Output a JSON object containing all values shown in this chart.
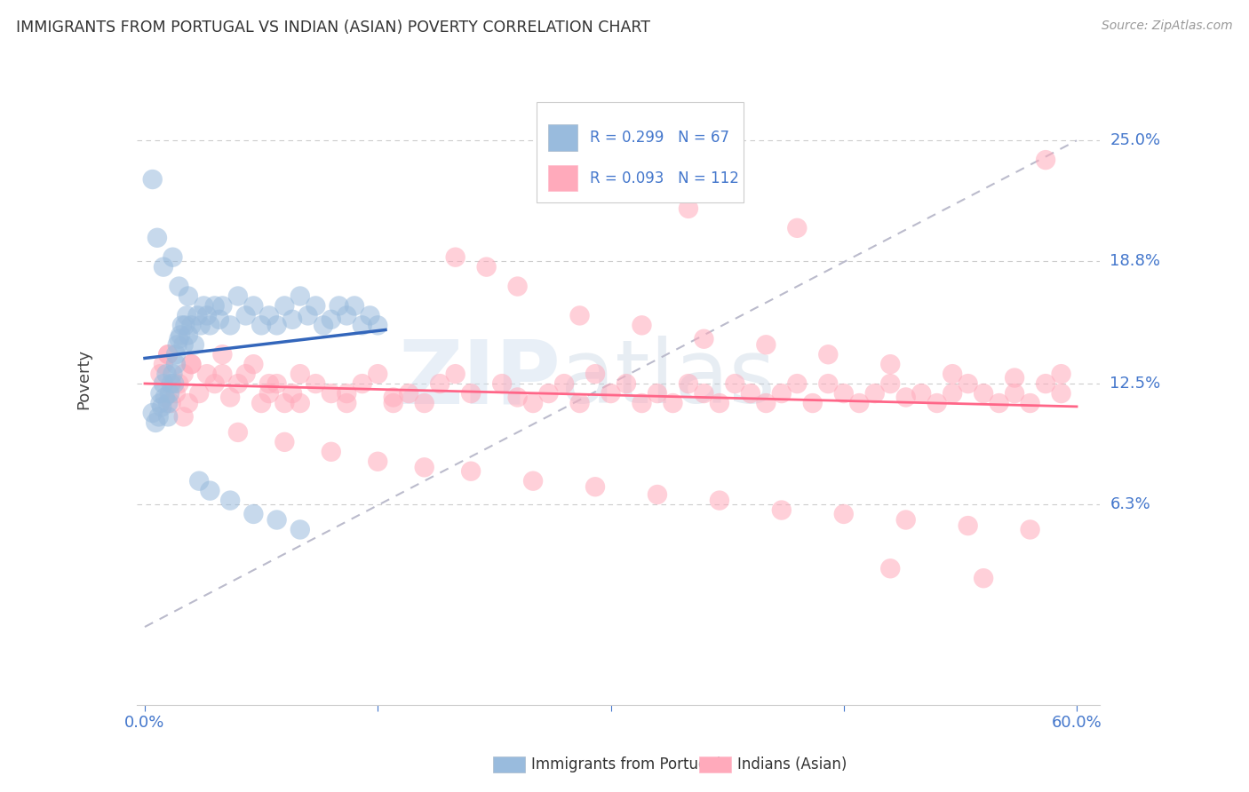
{
  "title": "IMMIGRANTS FROM PORTUGAL VS INDIAN (ASIAN) POVERTY CORRELATION CHART",
  "source": "Source: ZipAtlas.com",
  "ylabel": "Poverty",
  "ytick_labels": [
    "25.0%",
    "18.8%",
    "12.5%",
    "6.3%"
  ],
  "ytick_values": [
    0.25,
    0.188,
    0.125,
    0.063
  ],
  "xlim": [
    -0.005,
    0.615
  ],
  "ylim": [
    -0.04,
    0.295
  ],
  "color_blue": "#99BBDD",
  "color_pink": "#FFAABB",
  "color_line_blue": "#3366BB",
  "color_line_pink": "#FF6688",
  "color_dashed": "#BBBBCC",
  "color_axis_labels": "#4477CC",
  "color_title": "#333333",
  "legend_label1": "Immigrants from Portugal",
  "legend_label2": "Indians (Asian)",
  "port_x": [
    0.005,
    0.007,
    0.009,
    0.01,
    0.01,
    0.011,
    0.012,
    0.013,
    0.014,
    0.015,
    0.015,
    0.016,
    0.017,
    0.018,
    0.019,
    0.02,
    0.02,
    0.021,
    0.022,
    0.023,
    0.024,
    0.025,
    0.026,
    0.027,
    0.028,
    0.03,
    0.032,
    0.034,
    0.036,
    0.038,
    0.04,
    0.042,
    0.045,
    0.048,
    0.05,
    0.055,
    0.06,
    0.065,
    0.07,
    0.075,
    0.08,
    0.085,
    0.09,
    0.095,
    0.1,
    0.105,
    0.11,
    0.115,
    0.12,
    0.125,
    0.13,
    0.135,
    0.14,
    0.145,
    0.15,
    0.005,
    0.008,
    0.012,
    0.018,
    0.022,
    0.028,
    0.035,
    0.042,
    0.055,
    0.07,
    0.085,
    0.1
  ],
  "port_y": [
    0.11,
    0.105,
    0.108,
    0.115,
    0.12,
    0.113,
    0.125,
    0.118,
    0.13,
    0.108,
    0.115,
    0.12,
    0.125,
    0.13,
    0.125,
    0.135,
    0.14,
    0.145,
    0.148,
    0.15,
    0.155,
    0.145,
    0.155,
    0.16,
    0.15,
    0.155,
    0.145,
    0.16,
    0.155,
    0.165,
    0.16,
    0.155,
    0.165,
    0.158,
    0.165,
    0.155,
    0.17,
    0.16,
    0.165,
    0.155,
    0.16,
    0.155,
    0.165,
    0.158,
    0.17,
    0.16,
    0.165,
    0.155,
    0.158,
    0.165,
    0.16,
    0.165,
    0.155,
    0.16,
    0.155,
    0.23,
    0.2,
    0.185,
    0.19,
    0.175,
    0.17,
    0.075,
    0.07,
    0.065,
    0.058,
    0.055,
    0.05
  ],
  "ind_x": [
    0.01,
    0.012,
    0.015,
    0.017,
    0.02,
    0.022,
    0.025,
    0.028,
    0.03,
    0.035,
    0.04,
    0.045,
    0.05,
    0.055,
    0.06,
    0.065,
    0.07,
    0.075,
    0.08,
    0.085,
    0.09,
    0.095,
    0.1,
    0.11,
    0.12,
    0.13,
    0.14,
    0.15,
    0.16,
    0.17,
    0.18,
    0.19,
    0.2,
    0.21,
    0.22,
    0.23,
    0.24,
    0.25,
    0.26,
    0.27,
    0.28,
    0.29,
    0.3,
    0.31,
    0.32,
    0.33,
    0.34,
    0.35,
    0.36,
    0.37,
    0.38,
    0.39,
    0.4,
    0.41,
    0.42,
    0.43,
    0.44,
    0.45,
    0.46,
    0.47,
    0.48,
    0.49,
    0.5,
    0.51,
    0.52,
    0.53,
    0.54,
    0.55,
    0.56,
    0.57,
    0.58,
    0.59,
    0.015,
    0.03,
    0.05,
    0.08,
    0.1,
    0.13,
    0.16,
    0.2,
    0.24,
    0.28,
    0.32,
    0.36,
    0.4,
    0.44,
    0.48,
    0.52,
    0.56,
    0.025,
    0.06,
    0.09,
    0.12,
    0.15,
    0.18,
    0.21,
    0.25,
    0.29,
    0.33,
    0.37,
    0.41,
    0.45,
    0.49,
    0.53,
    0.57,
    0.35,
    0.42,
    0.48,
    0.54,
    0.59,
    0.58
  ],
  "ind_y": [
    0.13,
    0.135,
    0.14,
    0.115,
    0.12,
    0.125,
    0.13,
    0.115,
    0.135,
    0.12,
    0.13,
    0.125,
    0.14,
    0.118,
    0.125,
    0.13,
    0.135,
    0.115,
    0.12,
    0.125,
    0.115,
    0.12,
    0.13,
    0.125,
    0.12,
    0.115,
    0.125,
    0.13,
    0.118,
    0.12,
    0.115,
    0.125,
    0.13,
    0.12,
    0.185,
    0.125,
    0.118,
    0.115,
    0.12,
    0.125,
    0.115,
    0.13,
    0.12,
    0.125,
    0.115,
    0.12,
    0.115,
    0.125,
    0.12,
    0.115,
    0.125,
    0.12,
    0.115,
    0.12,
    0.125,
    0.115,
    0.125,
    0.12,
    0.115,
    0.12,
    0.125,
    0.118,
    0.12,
    0.115,
    0.12,
    0.125,
    0.12,
    0.115,
    0.12,
    0.115,
    0.125,
    0.13,
    0.14,
    0.135,
    0.13,
    0.125,
    0.115,
    0.12,
    0.115,
    0.19,
    0.175,
    0.16,
    0.155,
    0.148,
    0.145,
    0.14,
    0.135,
    0.13,
    0.128,
    0.108,
    0.1,
    0.095,
    0.09,
    0.085,
    0.082,
    0.08,
    0.075,
    0.072,
    0.068,
    0.065,
    0.06,
    0.058,
    0.055,
    0.052,
    0.05,
    0.215,
    0.205,
    0.03,
    0.025,
    0.12,
    0.24
  ]
}
